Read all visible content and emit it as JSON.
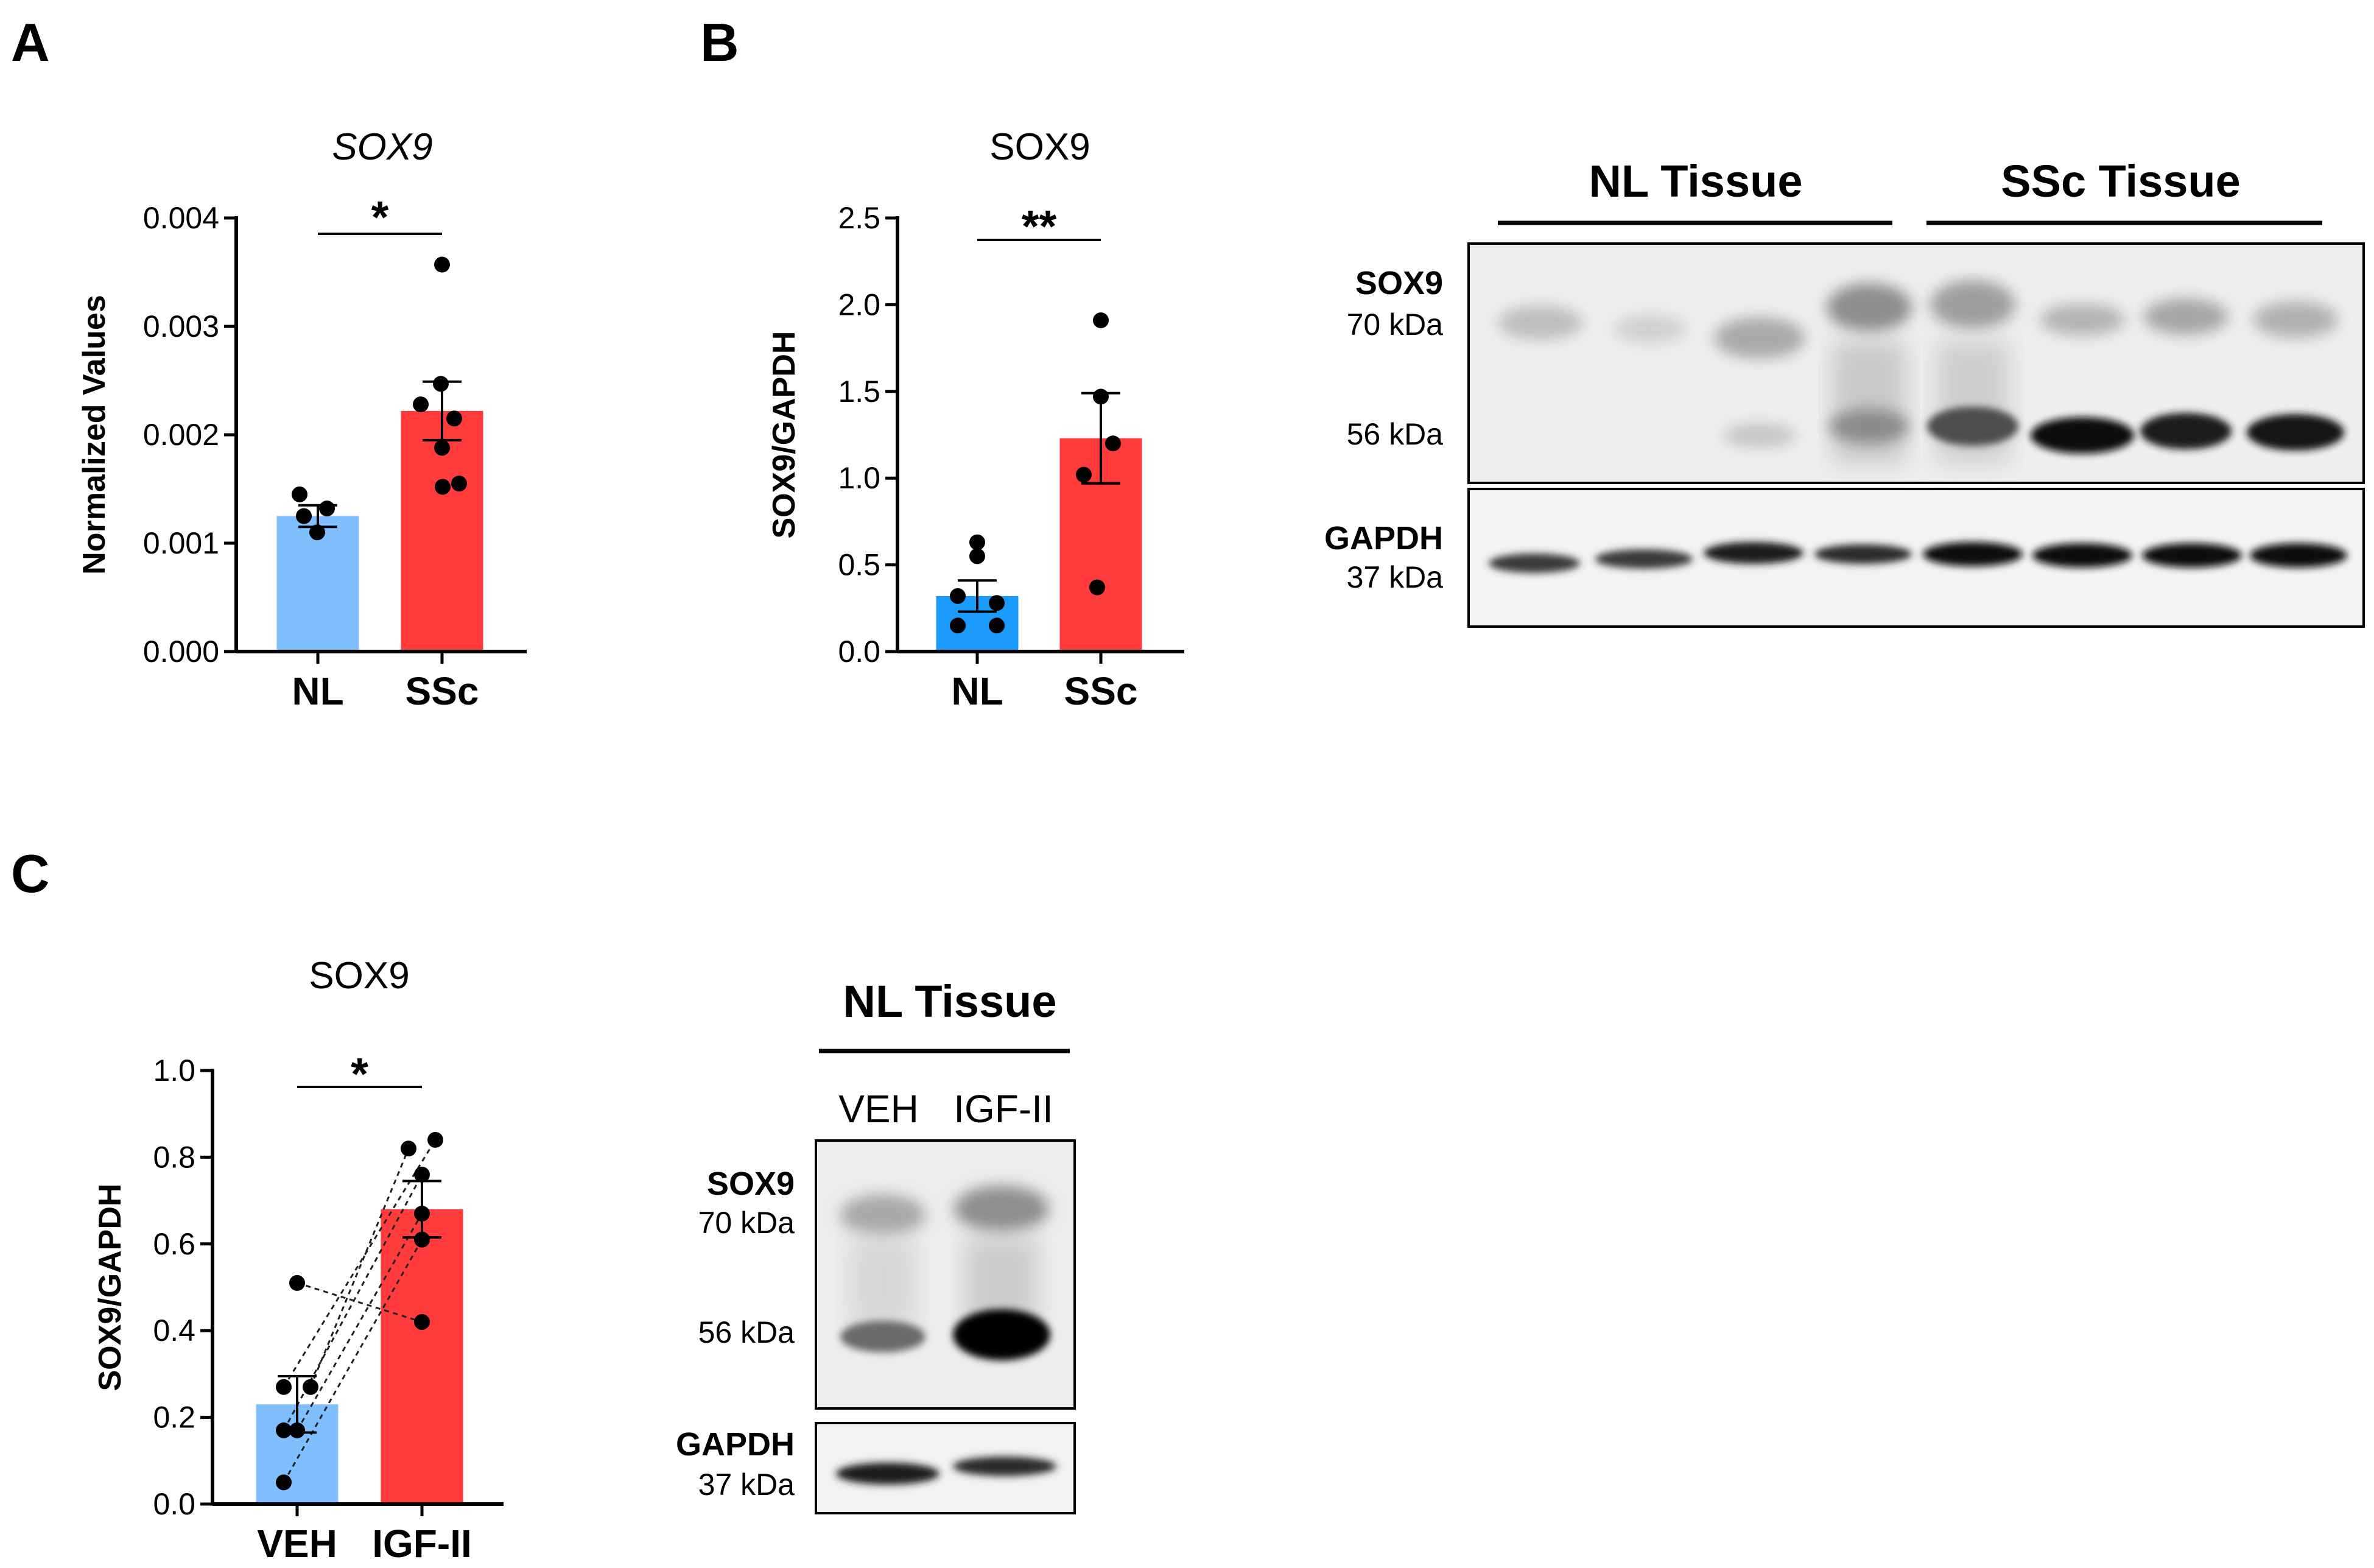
{
  "panels": {
    "A": "A",
    "B": "B",
    "C": "C"
  },
  "chart_data": [
    {
      "id": "A",
      "type": "bar",
      "title": "SOX9",
      "title_style": "italic",
      "ylabel": "Normalized Values",
      "ylim": [
        0,
        0.004
      ],
      "yticks": [
        "0.000",
        "0.001",
        "0.002",
        "0.003",
        "0.004"
      ],
      "categories": [
        "NL",
        "SSc"
      ],
      "values": [
        0.00125,
        0.00222
      ],
      "errors": [
        0.0001,
        0.00027
      ],
      "colors": [
        "#7fbfff",
        "#ff3b3b"
      ],
      "points": [
        [
          0.00145,
          0.00132,
          0.00125,
          0.0011
        ],
        [
          0.00357,
          0.00247,
          0.00228,
          0.00215,
          0.00188,
          0.00155,
          0.00152
        ]
      ],
      "significance": "*"
    },
    {
      "id": "B",
      "type": "bar",
      "title": "SOX9",
      "ylabel": "SOX9/GAPDH",
      "ylim": [
        0,
        2.5
      ],
      "yticks": [
        "0.0",
        "0.5",
        "1.0",
        "1.5",
        "2.0",
        "2.5"
      ],
      "categories": [
        "NL",
        "SSc"
      ],
      "values": [
        0.32,
        1.23
      ],
      "errors": [
        0.09,
        0.26
      ],
      "colors": [
        "#1c9bff",
        "#ff3b3b"
      ],
      "points": [
        [
          0.63,
          0.55,
          0.32,
          0.28,
          0.15,
          0.15
        ],
        [
          1.91,
          1.47,
          1.2,
          1.02,
          0.37
        ]
      ],
      "significance": "**"
    },
    {
      "id": "C",
      "type": "bar",
      "title": "SOX9",
      "ylabel": "SOX9/GAPDH",
      "ylim": [
        0,
        1.0
      ],
      "yticks": [
        "0.0",
        "0.2",
        "0.4",
        "0.6",
        "0.8",
        "1.0"
      ],
      "categories": [
        "VEH",
        "IGF-II"
      ],
      "values": [
        0.23,
        0.68
      ],
      "errors": [
        0.065,
        0.065
      ],
      "colors": [
        "#7fbfff",
        "#ff3b3b"
      ],
      "pairs": [
        [
          0.51,
          0.42
        ],
        [
          0.27,
          0.84
        ],
        [
          0.27,
          0.82
        ],
        [
          0.17,
          0.76
        ],
        [
          0.17,
          0.67
        ],
        [
          0.05,
          0.61
        ]
      ],
      "significance": "*"
    }
  ],
  "blots": {
    "B": {
      "groups": [
        "NL Tissue",
        "SSc Tissue"
      ],
      "sox9_label": "SOX9",
      "mw_70": "70 kDa",
      "mw_56": "56 kDa",
      "gapdh_label": "GAPDH",
      "mw_37": "37 kDa"
    },
    "C": {
      "group": "NL Tissue",
      "lanes": [
        "VEH",
        "IGF-II"
      ],
      "sox9_label": "SOX9",
      "mw_70": "70 kDa",
      "mw_56": "56 kDa",
      "gapdh_label": "GAPDH",
      "mw_37": "37 kDa"
    }
  }
}
